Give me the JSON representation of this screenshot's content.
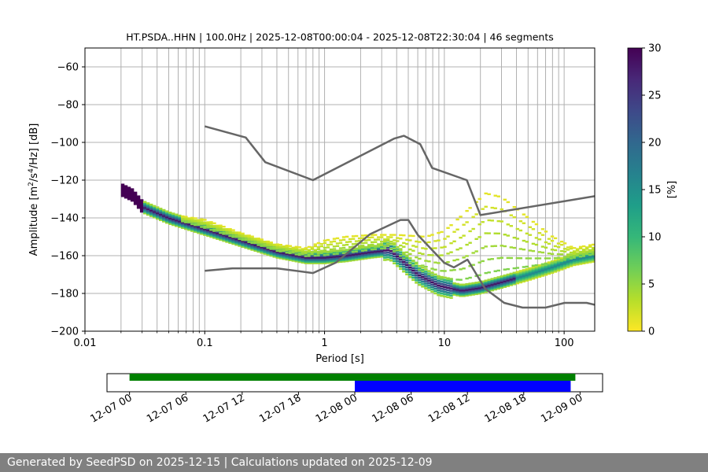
{
  "chart_data": {
    "type": "heatmap",
    "title": "HT.PSDA..HHN | 100.0Hz | 2025-12-08T00:00:04 - 2025-12-08T22:30:04 | 46 segments",
    "xlabel": "Period [s]",
    "ylabel_main": "Amplitude [m",
    "ylabel_sup1": "2",
    "ylabel_mid": "/s",
    "ylabel_sup2": "4",
    "ylabel_end": "/Hz] [dB]",
    "x_scale": "log",
    "xlim": [
      0.01,
      180
    ],
    "ylim": [
      -200,
      -50
    ],
    "x_ticks": [
      {
        "value": 0.01,
        "label": "0.01"
      },
      {
        "value": 0.1,
        "label": "0.1"
      },
      {
        "value": 1,
        "label": "1"
      },
      {
        "value": 10,
        "label": "10"
      },
      {
        "value": 100,
        "label": "100"
      }
    ],
    "y_ticks": [
      {
        "value": -60,
        "label": "−60"
      },
      {
        "value": -80,
        "label": "−80"
      },
      {
        "value": -100,
        "label": "−100"
      },
      {
        "value": -120,
        "label": "−120"
      },
      {
        "value": -140,
        "label": "−140"
      },
      {
        "value": -160,
        "label": "−160"
      },
      {
        "value": -180,
        "label": "−180"
      },
      {
        "value": -200,
        "label": "−200"
      }
    ],
    "grid": true,
    "colorbar": {
      "label": "[%]",
      "range": [
        0,
        30
      ],
      "ticks": [
        {
          "value": 0,
          "label": "0"
        },
        {
          "value": 5,
          "label": "5"
        },
        {
          "value": 10,
          "label": "10"
        },
        {
          "value": 15,
          "label": "15"
        },
        {
          "value": 20,
          "label": "20"
        },
        {
          "value": 25,
          "label": "25"
        },
        {
          "value": 30,
          "label": "30"
        }
      ],
      "colors": [
        "#fde725",
        "#b5de2b",
        "#6ece58",
        "#35b779",
        "#1f9e89",
        "#26828e",
        "#31688e",
        "#3e4989",
        "#482878",
        "#440154"
      ]
    },
    "nhnm": [
      [
        0.1,
        -91.5
      ],
      [
        0.22,
        -97.4
      ],
      [
        0.32,
        -110.5
      ],
      [
        0.8,
        -120
      ],
      [
        3.8,
        -98
      ],
      [
        4.6,
        -96.5
      ],
      [
        6.3,
        -101
      ],
      [
        7.9,
        -113.5
      ],
      [
        15.4,
        -120
      ],
      [
        20,
        -138.5
      ],
      [
        180,
        -128.5
      ]
    ],
    "nlnm": [
      [
        0.1,
        -168
      ],
      [
        0.17,
        -166.7
      ],
      [
        0.4,
        -166.7
      ],
      [
        0.8,
        -169.2
      ],
      [
        1.24,
        -163.7
      ],
      [
        2.4,
        -148.6
      ],
      [
        4.3,
        -141.1
      ],
      [
        5.0,
        -141.1
      ],
      [
        6.0,
        -149
      ],
      [
        10,
        -163.8
      ],
      [
        12,
        -166.2
      ],
      [
        15.6,
        -162.1
      ],
      [
        21.9,
        -177.5
      ],
      [
        31.6,
        -185
      ],
      [
        45,
        -187.5
      ],
      [
        70,
        -187.5
      ],
      [
        101,
        -185
      ],
      [
        154,
        -185
      ],
      [
        180,
        -186
      ]
    ],
    "mode_curve": [
      [
        0.02,
        -125
      ],
      [
        0.025,
        -128
      ],
      [
        0.03,
        -134
      ],
      [
        0.05,
        -140
      ],
      [
        0.1,
        -146
      ],
      [
        0.2,
        -152
      ],
      [
        0.4,
        -158
      ],
      [
        0.7,
        -161
      ],
      [
        1.0,
        -161
      ],
      [
        1.5,
        -160
      ],
      [
        2.5,
        -158
      ],
      [
        3.5,
        -157
      ],
      [
        4.5,
        -163
      ],
      [
        6,
        -170
      ],
      [
        9,
        -176
      ],
      [
        14,
        -178.5
      ],
      [
        20,
        -177
      ],
      [
        30,
        -174
      ],
      [
        50,
        -170
      ],
      [
        80,
        -166
      ],
      [
        120,
        -162
      ],
      [
        180,
        -160
      ]
    ],
    "upper_curve": [
      [
        0.05,
        -138
      ],
      [
        0.1,
        -141
      ],
      [
        0.2,
        -148
      ],
      [
        0.4,
        -154
      ],
      [
        0.7,
        -156
      ],
      [
        1.0,
        -152
      ],
      [
        1.5,
        -150
      ],
      [
        2.5,
        -149
      ],
      [
        4,
        -149
      ],
      [
        7,
        -150
      ],
      [
        10,
        -147
      ],
      [
        15,
        -137
      ],
      [
        22,
        -127
      ],
      [
        30,
        -129
      ],
      [
        50,
        -140
      ],
      [
        80,
        -150
      ],
      [
        120,
        -156
      ],
      [
        180,
        -154
      ]
    ],
    "time_axis": {
      "tick_labels": [
        "12-07 00",
        "12-07 06",
        "12-07 12",
        "12-07 18",
        "12-08 00",
        "12-08 06",
        "12-08 12",
        "12-08 18",
        "12-09 00"
      ],
      "tick_hours": [
        0,
        6,
        12,
        18,
        24,
        30,
        36,
        42,
        48
      ],
      "range_hours": [
        -2.4,
        50.4
      ],
      "green_span_hours": [
        0.0,
        47.5
      ],
      "blue_span_hours": [
        24.0,
        47.0
      ]
    }
  },
  "colors": {
    "curve_gray": "#666666",
    "grid": "#b0b0b0",
    "green_bar": "#008000",
    "blue_bar": "#0000ff",
    "footer_bg": "#808080"
  },
  "footer": {
    "text": "Generated by SeedPSD on 2025-12-15 | Calculations updated on 2025-12-09"
  }
}
